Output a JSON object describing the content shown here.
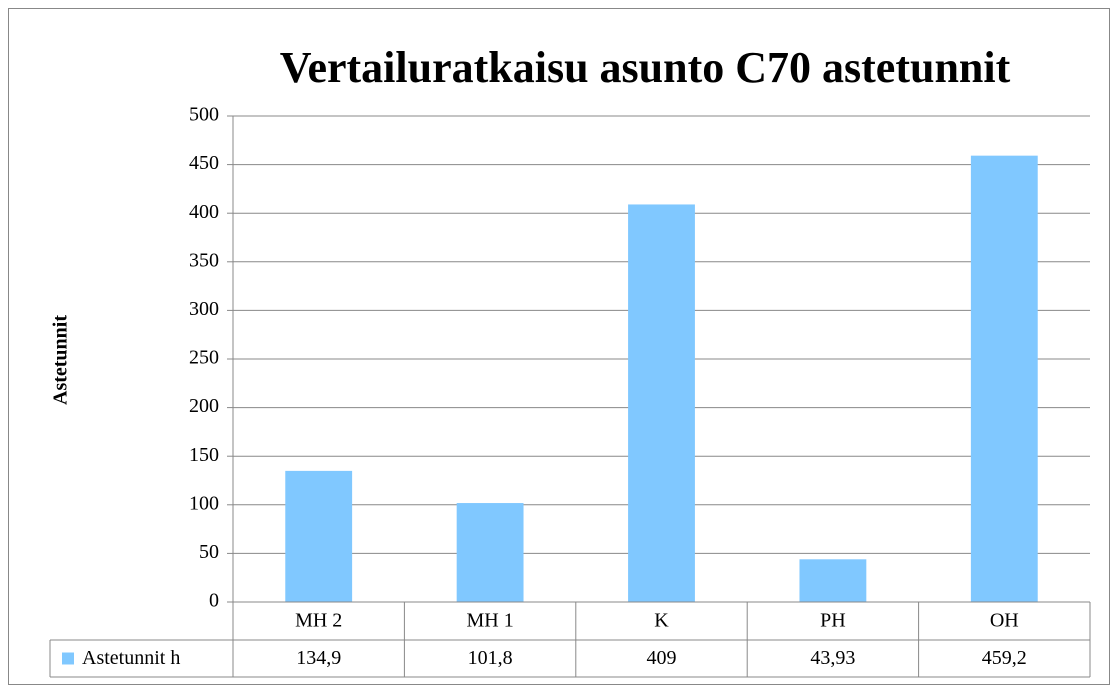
{
  "chart_data": {
    "type": "bar",
    "title": "Vertailuratkaisu asunto C70 astetunnit",
    "y_label": "Astetunnit",
    "categories": [
      "MH 2",
      "MH 1",
      "K",
      "PH",
      "OH"
    ],
    "series": [
      {
        "name": "Astetunnit h",
        "color": "#80c8ff",
        "values": [
          134.9,
          101.8,
          409,
          43.93,
          459.2
        ],
        "value_labels": [
          "134,9",
          "101,8",
          "409",
          "43,93",
          "459,2"
        ]
      }
    ],
    "ylim": [
      0,
      500
    ],
    "yticks": [
      0,
      50,
      100,
      150,
      200,
      250,
      300,
      350,
      400,
      450,
      500
    ],
    "grid": true,
    "data_table": true
  }
}
